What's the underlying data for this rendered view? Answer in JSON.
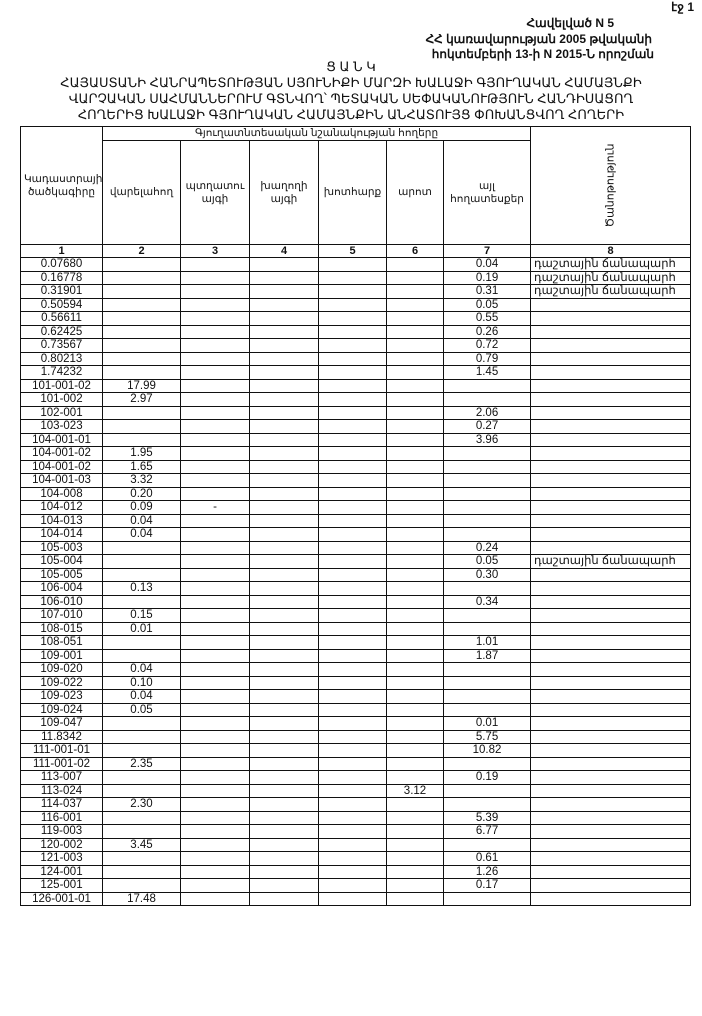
{
  "page_number": "էջ 1",
  "annex": "Հավելված N 5",
  "decision_line1": "ՀՀ կառավարության 2005 թվականի",
  "decision_line2": "հոկտեմբերի 13-ի N 2015-Ն որոշման",
  "list_title": "Ց Ա Ն Կ",
  "title_lines": [
    "ՀԱՅԱՍՏԱՆԻ ՀԱՆՐԱՊԵՏՈՒԹՅԱՆ ՍՅՈՒՆԻՔԻ ՄԱՐԶԻ ԽԱԼԱՋԻ ԳՅՈՒՂԱԿԱՆ ՀԱՄԱՅՆՔԻ",
    "ՎԱՐՉԱԿԱՆ ՍԱՀՄԱՆՆԵՐՈՒՄ ԳՏՆՎՈՂ՝ ՊԵՏԱԿԱՆ ՍԵՓԱԿԱՆՈՒԹՅՈՒՆ ՀԱՆԴԻՍԱՑՈՂ",
    "ՀՈՂԵՐԻՑ ԽԱԼԱՋԻ ԳՅՈՒՂԱԿԱՆ ՀԱՄԱՅՆՔԻՆ ԱՆՀԱՏՈՒՅՑ ՓՈԽԱՆՑՎՈՂ ՀՈՂԵՐԻ"
  ],
  "table": {
    "group_header": "Գյուղատնտեսական նշանակության հողերը",
    "columns": [
      "Կադաստրային ծածկագիրը",
      "վարելահող",
      "պտղատու այգի",
      "խաղողի այգի",
      "խոտհարք",
      "արոտ",
      "այլ հողատեսքեր",
      "Ծանոթություն"
    ],
    "column_numbers": [
      "1",
      "2",
      "3",
      "4",
      "5",
      "6",
      "7",
      "8"
    ],
    "rows": [
      [
        "0.07680",
        "",
        "",
        "",
        "",
        "",
        "0.04",
        "դաշտային ճանապարհ"
      ],
      [
        "0.16778",
        "",
        "",
        "",
        "",
        "",
        "0.19",
        "դաշտային ճանապարհ"
      ],
      [
        "0.31901",
        "",
        "",
        "",
        "",
        "",
        "0.31",
        "դաշտային ճանապարհ"
      ],
      [
        "0.50594",
        "",
        "",
        "",
        "",
        "",
        "0.05",
        ""
      ],
      [
        "0.56611",
        "",
        "",
        "",
        "",
        "",
        "0.55",
        ""
      ],
      [
        "0.62425",
        "",
        "",
        "",
        "",
        "",
        "0.26",
        ""
      ],
      [
        "0.73567",
        "",
        "",
        "",
        "",
        "",
        "0.72",
        ""
      ],
      [
        "0.80213",
        "",
        "",
        "",
        "",
        "",
        "0.79",
        ""
      ],
      [
        "1.74232",
        "",
        "",
        "",
        "",
        "",
        "1.45",
        ""
      ],
      [
        "101-001-02",
        "17.99",
        "",
        "",
        "",
        "",
        "",
        ""
      ],
      [
        "101-002",
        "2.97",
        "",
        "",
        "",
        "",
        "",
        ""
      ],
      [
        "102-001",
        "",
        "",
        "",
        "",
        "",
        "2.06",
        ""
      ],
      [
        "103-023",
        "",
        "",
        "",
        "",
        "",
        "0.27",
        ""
      ],
      [
        "104-001-01",
        "",
        "",
        "",
        "",
        "",
        "3.96",
        ""
      ],
      [
        "104-001-02",
        "1.95",
        "",
        "",
        "",
        "",
        "",
        ""
      ],
      [
        "104-001-02",
        "1.65",
        "",
        "",
        "",
        "",
        "",
        ""
      ],
      [
        "104-001-03",
        "3.32",
        "",
        "",
        "",
        "",
        "",
        ""
      ],
      [
        "104-008",
        "0.20",
        "",
        "",
        "",
        "",
        "",
        ""
      ],
      [
        "104-012",
        "0.09",
        "-",
        "",
        "",
        "",
        "",
        ""
      ],
      [
        "104-013",
        "0.04",
        "",
        "",
        "",
        "",
        "",
        ""
      ],
      [
        "104-014",
        "0.04",
        "",
        "",
        "",
        "",
        "",
        ""
      ],
      [
        "105-003",
        "",
        "",
        "",
        "",
        "",
        "0.24",
        ""
      ],
      [
        "105-004",
        "",
        "",
        "",
        "",
        "",
        "0.05",
        "դաշտային ճանապարհ"
      ],
      [
        "105-005",
        "",
        "",
        "",
        "",
        "",
        "0.30",
        ""
      ],
      [
        "106-004",
        "0.13",
        "",
        "",
        "",
        "",
        "",
        ""
      ],
      [
        "106-010",
        "",
        "",
        "",
        "",
        "",
        "0.34",
        ""
      ],
      [
        "107-010",
        "0.15",
        "",
        "",
        "",
        "",
        "",
        ""
      ],
      [
        "108-015",
        "0.01",
        "",
        "",
        "",
        "",
        "",
        ""
      ],
      [
        "108-051",
        "",
        "",
        "",
        "",
        "",
        "1.01",
        ""
      ],
      [
        "109-001",
        "",
        "",
        "",
        "",
        "",
        "1.87",
        ""
      ],
      [
        "109-020",
        "0.04",
        "",
        "",
        "",
        "",
        "",
        ""
      ],
      [
        "109-022",
        "0.10",
        "",
        "",
        "",
        "",
        "",
        ""
      ],
      [
        "109-023",
        "0.04",
        "",
        "",
        "",
        "",
        "",
        ""
      ],
      [
        "109-024",
        "0.05",
        "",
        "",
        "",
        "",
        "",
        ""
      ],
      [
        "109-047",
        "",
        "",
        "",
        "",
        "",
        "0.01",
        ""
      ],
      [
        "11.8342",
        "",
        "",
        "",
        "",
        "",
        "5.75",
        ""
      ],
      [
        "111-001-01",
        "",
        "",
        "",
        "",
        "",
        "10.82",
        ""
      ],
      [
        "111-001-02",
        "2.35",
        "",
        "",
        "",
        "",
        "",
        ""
      ],
      [
        "113-007",
        "",
        "",
        "",
        "",
        "",
        "0.19",
        ""
      ],
      [
        "113-024",
        "",
        "",
        "",
        "",
        "3.12",
        "",
        ""
      ],
      [
        "114-037",
        "2.30",
        "",
        "",
        "",
        "",
        "",
        ""
      ],
      [
        "116-001",
        "",
        "",
        "",
        "",
        "",
        "5.39",
        ""
      ],
      [
        "119-003",
        "",
        "",
        "",
        "",
        "",
        "6.77",
        ""
      ],
      [
        "120-002",
        "3.45",
        "",
        "",
        "",
        "",
        "",
        ""
      ],
      [
        "121-003",
        "",
        "",
        "",
        "",
        "",
        "0.61",
        ""
      ],
      [
        "124-001",
        "",
        "",
        "",
        "",
        "",
        "1.26",
        ""
      ],
      [
        "125-001",
        "",
        "",
        "",
        "",
        "",
        "0.17",
        ""
      ],
      [
        "126-001-01",
        "17.48",
        "",
        "",
        "",
        "",
        "",
        ""
      ]
    ]
  }
}
